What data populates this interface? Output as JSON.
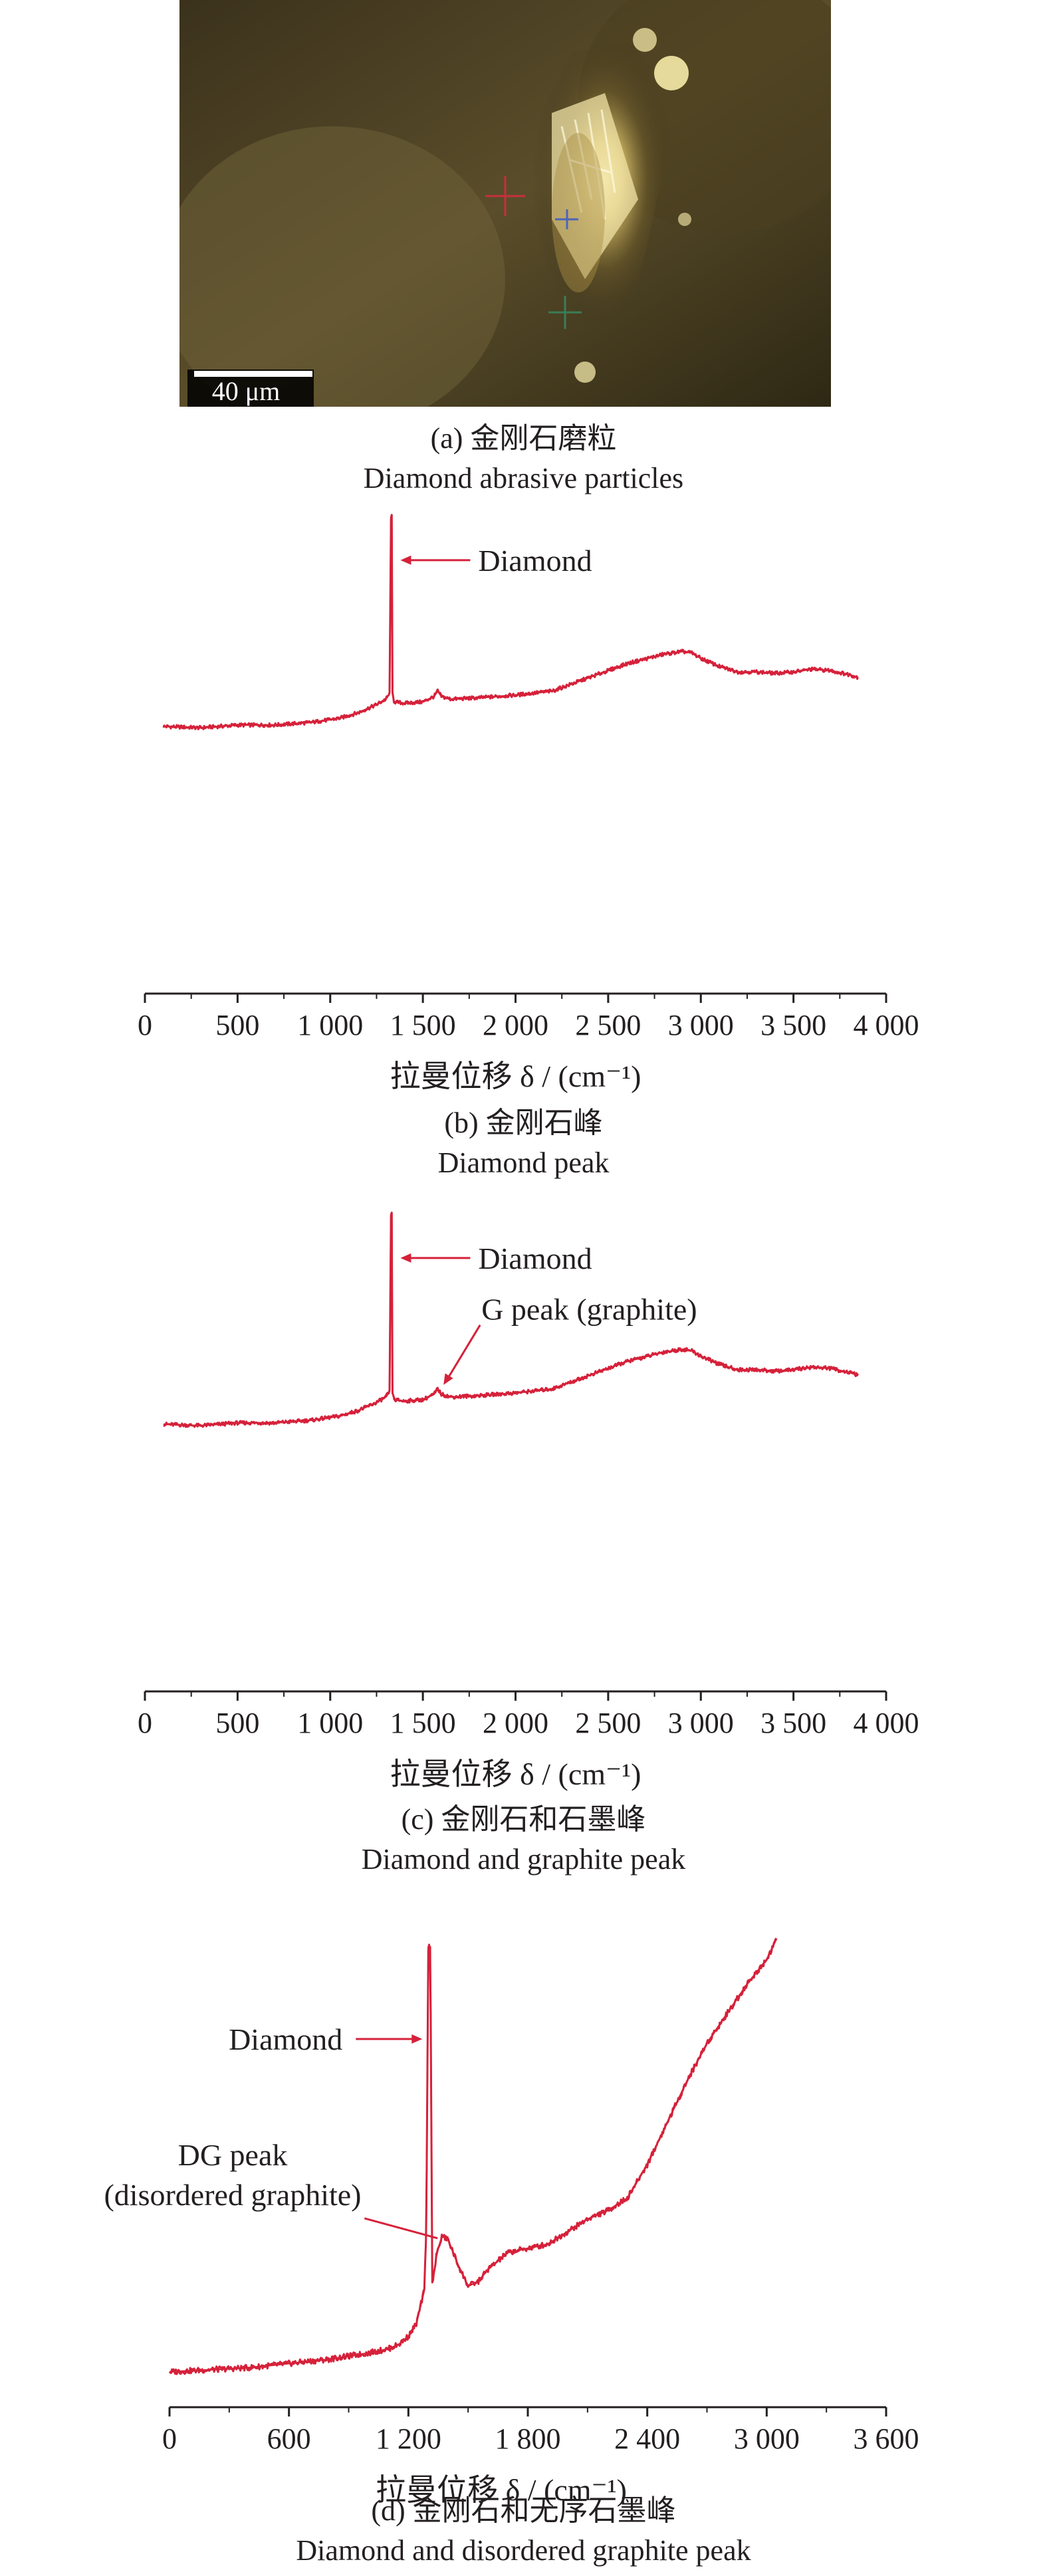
{
  "photo": {
    "scale_bar_label": "40 μm",
    "caption_zh": "(a) 金刚石磨粒",
    "caption_en": "Diamond abrasive particles"
  },
  "chart_data": [
    {
      "type": "line",
      "caption_zh": "(b) 金刚石峰",
      "caption_en": "Diamond peak",
      "xlabel": "拉曼位移 δ / (cm⁻¹)",
      "ylabel": "",
      "xlim": [
        0,
        4000
      ],
      "xticks": [
        0,
        500,
        1000,
        1500,
        2000,
        2500,
        3000,
        3500,
        4000
      ],
      "xtick_labels": [
        "0",
        "500",
        "1 000",
        "1 500",
        "2 000",
        "2 500",
        "3 000",
        "3 500",
        "4 000"
      ],
      "y_axis_visible": false,
      "ylim": [
        0,
        100
      ],
      "line_color": "#d6213a",
      "series": [
        {
          "x": [
            100,
            300,
            500,
            700,
            900,
            1050,
            1150,
            1250,
            1300,
            1320,
            1328,
            1332,
            1336,
            1345,
            1400,
            1500,
            1560,
            1580,
            1600,
            1650,
            1800,
            2000,
            2200,
            2400,
            2600,
            2800,
            2900,
            2950,
            3000,
            3100,
            3200,
            3300,
            3400,
            3500,
            3600,
            3700,
            3800,
            3850
          ],
          "y": [
            20,
            19.5,
            20.5,
            20.5,
            21.5,
            23,
            25,
            28,
            30,
            32,
            97,
            97,
            32,
            29,
            28.5,
            29,
            31,
            33,
            31,
            30,
            30.5,
            31.5,
            33,
            38,
            43,
            46.5,
            47.5,
            47,
            45,
            42,
            40,
            40,
            39.5,
            40,
            41,
            40.5,
            39,
            38
          ]
        }
      ],
      "annotations": [
        {
          "text": "Diamond",
          "x": 1336,
          "y": 81
        }
      ]
    },
    {
      "type": "line",
      "caption_zh": "(c) 金刚石和石墨峰",
      "caption_en": "Diamond and graphite peak",
      "xlabel": "拉曼位移 δ / (cm⁻¹)",
      "ylabel": "",
      "xlim": [
        0,
        4000
      ],
      "xticks": [
        0,
        500,
        1000,
        1500,
        2000,
        2500,
        3000,
        3500,
        4000
      ],
      "xtick_labels": [
        "0",
        "500",
        "1 000",
        "1 500",
        "2 000",
        "2 500",
        "3 000",
        "3 500",
        "4 000"
      ],
      "y_axis_visible": false,
      "ylim": [
        0,
        100
      ],
      "line_color": "#d6213a",
      "series": [
        {
          "x": [
            100,
            300,
            500,
            700,
            900,
            1050,
            1150,
            1250,
            1300,
            1320,
            1328,
            1332,
            1336,
            1345,
            1400,
            1500,
            1560,
            1580,
            1600,
            1650,
            1800,
            2000,
            2200,
            2400,
            2600,
            2800,
            2900,
            2950,
            3000,
            3100,
            3200,
            3300,
            3400,
            3500,
            3600,
            3700,
            3800,
            3850
          ],
          "y": [
            20,
            19.5,
            20.5,
            20.5,
            21.5,
            23,
            25,
            28,
            30,
            32,
            97,
            97,
            32,
            29,
            28.5,
            29,
            31,
            33,
            31,
            30,
            30.5,
            31.5,
            33,
            38,
            43,
            46.5,
            47.5,
            47,
            45,
            42,
            40,
            40,
            39.5,
            40,
            41,
            40.5,
            39,
            38
          ]
        }
      ],
      "annotations": [
        {
          "text": "Diamond",
          "x": 1336,
          "y": 81
        },
        {
          "text": "G peak (graphite)",
          "x": 1590,
          "y": 33
        }
      ]
    },
    {
      "type": "line",
      "caption_zh": "(d) 金刚石和无序石墨峰",
      "caption_en": "Diamond and disordered graphite peak",
      "xlabel": "拉曼位移 δ / (cm⁻¹)",
      "ylabel": "",
      "xlim": [
        0,
        3600
      ],
      "xticks": [
        0,
        600,
        1200,
        1800,
        2400,
        3000,
        3600
      ],
      "xtick_labels": [
        "0",
        "600",
        "1 200",
        "1 800",
        "2 400",
        "3 000",
        "3 600"
      ],
      "y_axis_visible": false,
      "ylim": [
        0,
        100
      ],
      "line_color": "#d6213a",
      "series": [
        {
          "x": [
            0,
            200,
            400,
            600,
            800,
            1000,
            1100,
            1150,
            1200,
            1240,
            1260,
            1280,
            1290,
            1300,
            1310,
            1320,
            1332,
            1340,
            1350,
            1370,
            1400,
            1450,
            1500,
            1550,
            1600,
            1700,
            1800,
            1900,
            2000,
            2100,
            2200,
            2300,
            2400,
            2500,
            2600,
            2700,
            2800,
            2900,
            3000,
            3050
          ],
          "y": [
            0.5,
            1,
            1.5,
            2.5,
            3.5,
            5,
            6,
            7,
            9,
            12,
            16,
            20,
            35,
            102,
            102,
            22,
            25,
            28,
            30,
            33,
            32,
            26,
            21,
            22,
            25,
            29,
            30,
            31,
            34,
            37,
            39,
            42,
            50,
            60,
            70,
            79,
            86,
            93,
            99,
            104
          ]
        }
      ],
      "annotations": [
        {
          "text": "Diamond",
          "x": 1290,
          "y": 80
        },
        {
          "text": "DG peak",
          "x": 1380,
          "y": 34
        },
        {
          "text": "(disordered graphite)",
          "x": 1380,
          "y": 34
        }
      ]
    }
  ]
}
